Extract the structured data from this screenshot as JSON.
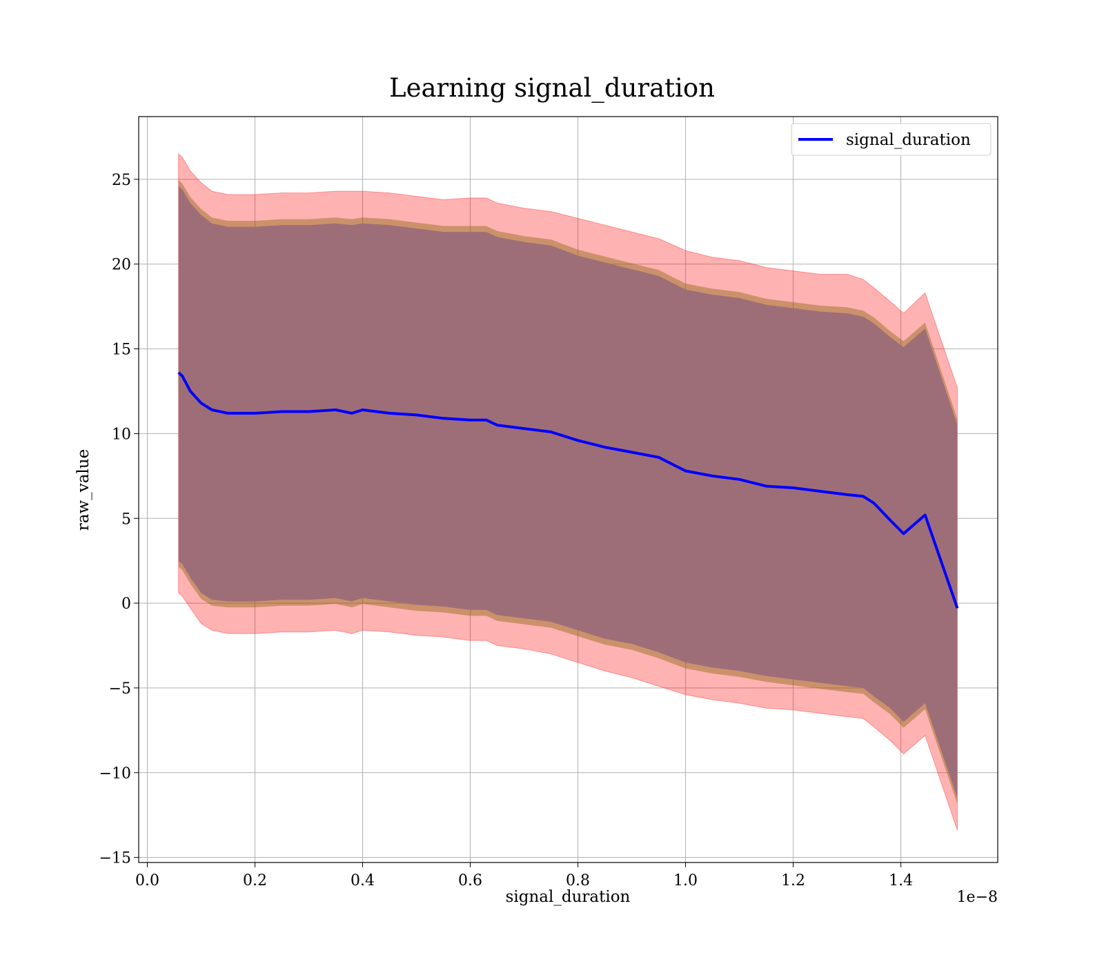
{
  "chart_data": {
    "type": "line",
    "title": "Learning signal_duration",
    "xlabel": "signal_duration",
    "ylabel": "raw_value",
    "x_offset_label": "1e−8",
    "xlim": [
      -0.016,
      1.58
    ],
    "ylim": [
      -15.3,
      28.7
    ],
    "x_ticks": [
      0.0,
      0.2,
      0.4,
      0.6,
      0.8,
      1.0,
      1.2,
      1.4
    ],
    "x_tick_labels": [
      "0.0",
      "0.2",
      "0.4",
      "0.6",
      "0.8",
      "1.0",
      "1.2",
      "1.4"
    ],
    "y_ticks": [
      -15,
      -10,
      -5,
      0,
      5,
      10,
      15,
      20,
      25
    ],
    "y_tick_labels": [
      "−15",
      "−10",
      "−5",
      "0",
      "5",
      "10",
      "15",
      "20",
      "25"
    ],
    "grid": true,
    "legend_position": "top-right",
    "colors": {
      "line": "#0000ff",
      "outer_band": "#ff0000",
      "inner_band": "#800000",
      "inner_edge": "#8b6914"
    },
    "series": [
      {
        "name": "signal_duration",
        "x": [
          0.058,
          0.065,
          0.08,
          0.1,
          0.12,
          0.15,
          0.2,
          0.25,
          0.3,
          0.35,
          0.38,
          0.4,
          0.45,
          0.5,
          0.55,
          0.6,
          0.63,
          0.65,
          0.7,
          0.75,
          0.8,
          0.85,
          0.9,
          0.95,
          1.0,
          1.05,
          1.1,
          1.15,
          1.2,
          1.25,
          1.3,
          1.33,
          1.35,
          1.38,
          1.405,
          1.445,
          1.505
        ],
        "values": [
          13.6,
          13.4,
          12.5,
          11.8,
          11.4,
          11.2,
          11.2,
          11.3,
          11.3,
          11.4,
          11.2,
          11.4,
          11.2,
          11.1,
          10.9,
          10.8,
          10.8,
          10.5,
          10.3,
          10.1,
          9.6,
          9.2,
          8.9,
          8.6,
          7.8,
          7.5,
          7.3,
          6.9,
          6.8,
          6.6,
          6.4,
          6.3,
          5.9,
          4.9,
          4.1,
          5.2,
          -0.3
        ]
      }
    ],
    "bands": [
      {
        "role": "outer",
        "upper": [
          26.5,
          26.3,
          25.5,
          24.8,
          24.3,
          24.1,
          24.1,
          24.2,
          24.2,
          24.3,
          24.3,
          24.3,
          24.2,
          24.0,
          23.8,
          23.9,
          23.9,
          23.6,
          23.3,
          23.1,
          22.7,
          22.3,
          21.9,
          21.5,
          20.8,
          20.4,
          20.2,
          19.8,
          19.6,
          19.4,
          19.4,
          19.1,
          18.6,
          17.8,
          17.1,
          18.3,
          12.7
        ],
        "lower": [
          0.6,
          0.4,
          -0.3,
          -1.2,
          -1.6,
          -1.8,
          -1.8,
          -1.7,
          -1.7,
          -1.6,
          -1.8,
          -1.6,
          -1.7,
          -1.9,
          -2.0,
          -2.2,
          -2.2,
          -2.5,
          -2.7,
          -3.0,
          -3.5,
          -4.0,
          -4.4,
          -4.9,
          -5.4,
          -5.7,
          -5.9,
          -6.2,
          -6.3,
          -6.5,
          -6.7,
          -6.8,
          -7.3,
          -8.1,
          -8.9,
          -7.8,
          -13.4
        ]
      },
      {
        "role": "inner",
        "upper": [
          24.6,
          24.4,
          23.6,
          22.9,
          22.4,
          22.2,
          22.2,
          22.3,
          22.3,
          22.4,
          22.3,
          22.4,
          22.3,
          22.1,
          21.9,
          21.9,
          21.9,
          21.6,
          21.3,
          21.1,
          20.5,
          20.1,
          19.7,
          19.3,
          18.5,
          18.2,
          18.0,
          17.6,
          17.4,
          17.2,
          17.1,
          16.9,
          16.5,
          15.7,
          15.1,
          16.2,
          10.5
        ],
        "lower": [
          2.5,
          2.3,
          1.5,
          0.6,
          0.2,
          0.1,
          0.1,
          0.2,
          0.2,
          0.3,
          0.1,
          0.3,
          0.1,
          -0.1,
          -0.2,
          -0.4,
          -0.4,
          -0.7,
          -0.9,
          -1.1,
          -1.6,
          -2.1,
          -2.4,
          -2.9,
          -3.5,
          -3.8,
          -4.0,
          -4.3,
          -4.5,
          -4.7,
          -4.9,
          -5.0,
          -5.5,
          -6.2,
          -7.0,
          -5.9,
          -11.5
        ]
      }
    ]
  }
}
